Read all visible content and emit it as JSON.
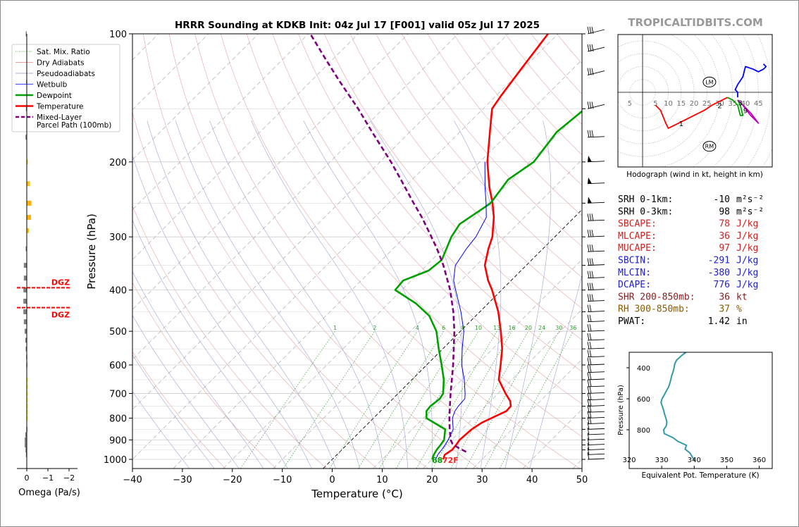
{
  "site_label": "TROPICALTIDBITS.COM",
  "chart_data": [
    {
      "type": "line",
      "subtype": "skew-t log-p",
      "title": "HRRR Sounding at KDKB Init: 04z Jul 17 [F001] valid 05z Jul 17 2025",
      "xlabel": "Temperature (°C)",
      "ylabel": "Pressure (hPa)",
      "xlim": [
        -40,
        50
      ],
      "ylim": [
        1050,
        100
      ],
      "y_scale": "log",
      "x_ticks": [
        "−40",
        "−30",
        "−20",
        "−10",
        "0",
        "10",
        "20",
        "30",
        "40",
        "50"
      ],
      "y_ticks": [
        "100",
        "200",
        "300",
        "400",
        "500",
        "600",
        "700",
        "800",
        "900",
        "1000"
      ],
      "legend_position": "top-left",
      "legend": [
        "Sat. Mix. Ratio",
        "Dry Adiabats",
        "Pseudoadiabats",
        "Wetbulb",
        "Dewpoint",
        "Temperature",
        "Mixed-Layer\nParcel Path (100mb)"
      ],
      "mixing_ratio_labels": [
        "1",
        "2",
        "4",
        "6",
        "8",
        "10",
        "13",
        "16",
        "20",
        "24",
        "30",
        "36"
      ],
      "surface_labels": {
        "dewpoint": "68",
        "temperature": "72F"
      },
      "series": [
        {
          "name": "Temperature",
          "color": "#ff0000",
          "points": [
            [
              1000,
              22.2
            ],
            [
              975,
              21.6
            ],
            [
              950,
              22.1
            ],
            [
              925,
              21.9
            ],
            [
              900,
              21.6
            ],
            [
              850,
              21.9
            ],
            [
              820,
              22.6
            ],
            [
              800,
              23.6
            ],
            [
              770,
              25.2
            ],
            [
              750,
              25.1
            ],
            [
              730,
              24.0
            ],
            [
              700,
              21.5
            ],
            [
              650,
              17.4
            ],
            [
              600,
              14.8
            ],
            [
              550,
              11.9
            ],
            [
              500,
              8.1
            ],
            [
              450,
              3.7
            ],
            [
              400,
              -1.9
            ],
            [
              380,
              -4.6
            ],
            [
              350,
              -8.3
            ],
            [
              320,
              -10.9
            ],
            [
              300,
              -12.5
            ],
            [
              270,
              -16.1
            ],
            [
              250,
              -19.2
            ],
            [
              230,
              -22.9
            ],
            [
              200,
              -28.5
            ],
            [
              170,
              -34.0
            ],
            [
              150,
              -38.2
            ],
            [
              140,
              -39.0
            ],
            [
              120,
              -40.4
            ],
            [
              100,
              -42.0
            ]
          ]
        },
        {
          "name": "Dewpoint",
          "color": "#00a000",
          "points": [
            [
              1000,
              20.0
            ],
            [
              975,
              19.4
            ],
            [
              950,
              19.0
            ],
            [
              925,
              18.8
            ],
            [
              900,
              18.5
            ],
            [
              850,
              16.6
            ],
            [
              800,
              10.6
            ],
            [
              770,
              9.2
            ],
            [
              750,
              9.0
            ],
            [
              720,
              9.4
            ],
            [
              700,
              9.0
            ],
            [
              650,
              6.4
            ],
            [
              600,
              3.0
            ],
            [
              550,
              -0.8
            ],
            [
              500,
              -4.8
            ],
            [
              460,
              -9.3
            ],
            [
              430,
              -14.5
            ],
            [
              400,
              -21.3
            ],
            [
              380,
              -21.6
            ],
            [
              360,
              -18.5
            ],
            [
              340,
              -18.0
            ],
            [
              320,
              -19.3
            ],
            [
              300,
              -20.7
            ],
            [
              280,
              -21.6
            ],
            [
              250,
              -19.6
            ],
            [
              220,
              -20.8
            ],
            [
              200,
              -19.2
            ],
            [
              170,
              -20.6
            ],
            [
              150,
              -19.6
            ],
            [
              130,
              -17.7
            ],
            [
              120,
              -15.5
            ],
            [
              100,
              -14.8
            ]
          ]
        },
        {
          "name": "Wetbulb",
          "color": "#0000ff",
          "points": [
            [
              1000,
              20.7
            ],
            [
              975,
              20.2
            ],
            [
              950,
              20.0
            ],
            [
              925,
              19.7
            ],
            [
              900,
              19.3
            ],
            [
              850,
              18.2
            ],
            [
              800,
              15.8
            ],
            [
              770,
              14.9
            ],
            [
              750,
              14.6
            ],
            [
              720,
              14.4
            ],
            [
              700,
              13.4
            ],
            [
              650,
              10.5
            ],
            [
              600,
              7.0
            ],
            [
              550,
              3.9
            ],
            [
              500,
              0.7
            ],
            [
              450,
              -3.8
            ],
            [
              400,
              -9.2
            ],
            [
              380,
              -11.5
            ],
            [
              350,
              -14.2
            ],
            [
              320,
              -15.3
            ],
            [
              300,
              -15.8
            ],
            [
              270,
              -17.6
            ],
            [
              250,
              -20.5
            ],
            [
              230,
              -23.8
            ],
            [
              200,
              -29.0
            ]
          ]
        },
        {
          "name": "Mixed-Layer Parcel Path (100mb)",
          "color": "#800080",
          "dashed": true,
          "points": [
            [
              960,
              25.3
            ],
            [
              940,
              23.0
            ],
            [
              920,
              21.0
            ],
            [
              900,
              19.8
            ],
            [
              850,
              17.5
            ],
            [
              800,
              15.2
            ],
            [
              750,
              12.9
            ],
            [
              700,
              10.5
            ],
            [
              650,
              8.0
            ],
            [
              600,
              5.3
            ],
            [
              550,
              2.2
            ],
            [
              500,
              -1.2
            ],
            [
              450,
              -5.3
            ],
            [
              400,
              -10.3
            ],
            [
              350,
              -16.6
            ],
            [
              320,
              -21.2
            ],
            [
              300,
              -24.7
            ],
            [
              270,
              -30.5
            ],
            [
              250,
              -35.0
            ],
            [
              220,
              -42.3
            ],
            [
              200,
              -47.8
            ],
            [
              170,
              -57.6
            ],
            [
              150,
              -65.0
            ],
            [
              130,
              -73.9
            ],
            [
              115,
              -81.3
            ],
            [
              100,
              -89.6
            ]
          ]
        }
      ]
    },
    {
      "type": "bar",
      "subtype": "omega profile",
      "xlabel": "Omega (Pa/s)",
      "x_ticks": [
        "0",
        "−1",
        "−2"
      ],
      "dgz_label": "DGZ",
      "dgz_layers_hpa": [
        395,
        440
      ],
      "bars": [
        {
          "p": 100,
          "v": 0.05,
          "color": "#808080"
        },
        {
          "p": 130,
          "v": 0.03,
          "color": "#808080"
        },
        {
          "p": 150,
          "v": 0.04,
          "color": "#808080"
        },
        {
          "p": 175,
          "v": 0.06,
          "color": "#808080"
        },
        {
          "p": 200,
          "v": -0.05,
          "color": "#ffc000"
        },
        {
          "p": 225,
          "v": -0.15,
          "color": "#ffc000"
        },
        {
          "p": 250,
          "v": -0.22,
          "color": "#ffb000"
        },
        {
          "p": 270,
          "v": -0.2,
          "color": "#ffb000"
        },
        {
          "p": 290,
          "v": -0.1,
          "color": "#ffc000"
        },
        {
          "p": 320,
          "v": 0.05,
          "color": "#808080"
        },
        {
          "p": 350,
          "v": 0.14,
          "color": "#808080"
        },
        {
          "p": 375,
          "v": 0.14,
          "color": "#808080"
        },
        {
          "p": 400,
          "v": 0.16,
          "color": "#808080"
        },
        {
          "p": 425,
          "v": 0.16,
          "color": "#808080"
        },
        {
          "p": 450,
          "v": 0.16,
          "color": "#808080"
        },
        {
          "p": 475,
          "v": 0.14,
          "color": "#808080"
        },
        {
          "p": 500,
          "v": 0.1,
          "color": "#808080"
        },
        {
          "p": 525,
          "v": 0.07,
          "color": "#808080"
        },
        {
          "p": 550,
          "v": 0.05,
          "color": "#808080"
        },
        {
          "p": 575,
          "v": 0.03,
          "color": "#808080"
        },
        {
          "p": 600,
          "v": 0.02,
          "color": "#808080"
        },
        {
          "p": 650,
          "v": -0.01,
          "color": "#ffff00"
        },
        {
          "p": 675,
          "v": -0.02,
          "color": "#ffff00"
        },
        {
          "p": 700,
          "v": -0.03,
          "color": "#ffff00"
        },
        {
          "p": 725,
          "v": -0.05,
          "color": "#ffff00"
        },
        {
          "p": 750,
          "v": -0.05,
          "color": "#ffff00"
        },
        {
          "p": 775,
          "v": -0.04,
          "color": "#ffff00"
        },
        {
          "p": 800,
          "v": -0.02,
          "color": "#ffff00"
        },
        {
          "p": 850,
          "v": 0.02,
          "color": "#808080"
        },
        {
          "p": 875,
          "v": 0.07,
          "color": "#808080"
        },
        {
          "p": 900,
          "v": 0.1,
          "color": "#808080"
        },
        {
          "p": 925,
          "v": 0.1,
          "color": "#808080"
        },
        {
          "p": 950,
          "v": 0.06,
          "color": "#808080"
        },
        {
          "p": 975,
          "v": 0.04,
          "color": "#808080"
        }
      ]
    },
    {
      "type": "line",
      "subtype": "hodograph",
      "caption": "Hodograph (wind in kt, height in km)",
      "ring_labels": [
        "5",
        "5",
        "10",
        "15",
        "20",
        "25",
        "30",
        "35",
        "40",
        "45"
      ],
      "markers": [
        "LM",
        "RM"
      ],
      "height_labels": [
        "1",
        "2",
        "3",
        "9"
      ],
      "segments": [
        {
          "color": "#ff0000",
          "points": [
            [
              5,
              -5
            ],
            [
              7,
              -7
            ],
            [
              9,
              -12
            ],
            [
              10,
              -14
            ],
            [
              12,
              -13
            ],
            [
              16,
              -11
            ],
            [
              20,
              -9
            ],
            [
              24,
              -7
            ],
            [
              27,
              -5
            ],
            [
              29,
              -4
            ],
            [
              33,
              -2
            ]
          ]
        },
        {
          "color": "#00a000",
          "points": [
            [
              33,
              -2
            ],
            [
              35,
              -3
            ],
            [
              37,
              -5
            ],
            [
              38,
              -9
            ],
            [
              39,
              -9
            ],
            [
              38,
              -5
            ],
            [
              37,
              -3
            ]
          ]
        },
        {
          "color": "#c000c0",
          "points": [
            [
              37,
              -3
            ],
            [
              40,
              -6
            ],
            [
              42,
              -8
            ],
            [
              45,
              -12
            ],
            [
              42,
              -9
            ],
            [
              39,
              -5
            ]
          ]
        },
        {
          "color": "#0000ff",
          "points": [
            [
              37,
              -2
            ],
            [
              37,
              0
            ],
            [
              36,
              1
            ],
            [
              37,
              3
            ],
            [
              39,
              6
            ],
            [
              40,
              10
            ],
            [
              43,
              9
            ],
            [
              45,
              8
            ],
            [
              47,
              9
            ],
            [
              48,
              10
            ],
            [
              47,
              11
            ]
          ]
        }
      ]
    },
    {
      "type": "line",
      "subtype": "theta-e profile",
      "xlabel": "Equivalent Pot. Temperature (K)",
      "ylabel": "Pressure (hPa)",
      "xlim": [
        320,
        364
      ],
      "x_ticks": [
        "320",
        "330",
        "340",
        "350",
        "360"
      ],
      "y_ticks": [
        "400",
        "600",
        "800"
      ],
      "color": "#3399aa",
      "points": [
        [
          1000,
          340.2
        ],
        [
          975,
          339.4
        ],
        [
          950,
          338.7
        ],
        [
          925,
          337.2
        ],
        [
          900,
          337.6
        ],
        [
          875,
          335.0
        ],
        [
          850,
          333.4
        ],
        [
          825,
          330.8
        ],
        [
          800,
          330.6
        ],
        [
          775,
          331.4
        ],
        [
          750,
          331.6
        ],
        [
          725,
          331.3
        ],
        [
          700,
          330.9
        ],
        [
          675,
          330.6
        ],
        [
          650,
          330.2
        ],
        [
          625,
          329.8
        ],
        [
          600,
          330.1
        ],
        [
          575,
          330.8
        ],
        [
          550,
          331.4
        ],
        [
          525,
          332.1
        ],
        [
          500,
          332.5
        ],
        [
          475,
          332.8
        ],
        [
          450,
          333.1
        ],
        [
          425,
          333.5
        ],
        [
          400,
          333.8
        ],
        [
          375,
          334.0
        ],
        [
          350,
          334.6
        ],
        [
          325,
          335.9
        ],
        [
          310,
          336.8
        ],
        [
          300,
          337.5
        ]
      ]
    }
  ],
  "legend_items": [
    {
      "label": "Sat. Mix. Ratio",
      "color": "#2e8b2e",
      "style": "dotted"
    },
    {
      "label": "Dry Adiabats",
      "color": "#e08080",
      "style": "solid"
    },
    {
      "label": "Pseudoadiabats",
      "color": "#9090c8",
      "style": "solid"
    },
    {
      "label": "Wetbulb",
      "color": "#0000ff",
      "style": "solid"
    },
    {
      "label": "Dewpoint",
      "color": "#00a000",
      "style": "bold"
    },
    {
      "label": "Temperature",
      "color": "#ff0000",
      "style": "bold"
    },
    {
      "label": "Mixed-Layer",
      "label2": "Parcel Path (100mb)",
      "color": "#800080",
      "style": "dashed"
    }
  ],
  "params": [
    {
      "label": "SRH 0-1km:",
      "value": "-10",
      "unit": "m²s⁻²",
      "color": "#000000"
    },
    {
      "label": "SRH 0-3km:",
      "value": "98",
      "unit": "m²s⁻²",
      "color": "#000000"
    },
    {
      "label": "SBCAPE:",
      "value": "78",
      "unit": "J/kg",
      "color": "#d02020"
    },
    {
      "label": "MLCAPE:",
      "value": "36",
      "unit": "J/kg",
      "color": "#d02020"
    },
    {
      "label": "MUCAPE:",
      "value": "97",
      "unit": "J/kg",
      "color": "#d02020"
    },
    {
      "label": "SBCIN:",
      "value": "-291",
      "unit": "J/kg",
      "color": "#2020d0"
    },
    {
      "label": "MLCIN:",
      "value": "-380",
      "unit": "J/kg",
      "color": "#2020d0"
    },
    {
      "label": "DCAPE:",
      "value": "776",
      "unit": "J/kg",
      "color": "#2020d0"
    },
    {
      "label": "SHR 200-850mb:",
      "value": "36",
      "unit": "kt",
      "color": "#8b1a1a"
    },
    {
      "label": "RH 300-850mb:",
      "value": "37",
      "unit": "%",
      "color": "#8b5a00"
    },
    {
      "label": "PWAT:",
      "value": "1.42",
      "unit": "in",
      "color": "#000000"
    }
  ]
}
